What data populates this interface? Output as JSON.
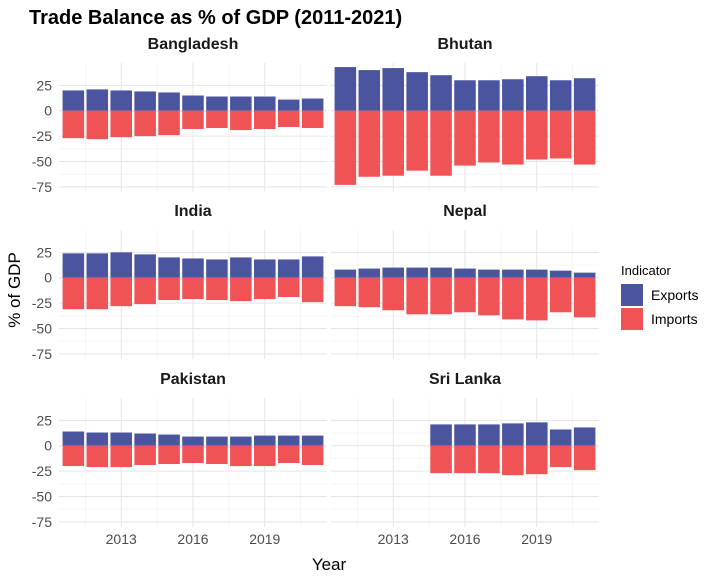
{
  "chart_data": {
    "type": "bar",
    "title": "Trade Balance as % of GDP (2011-2021)",
    "xlabel": "Year",
    "ylabel": "% of GDP",
    "x_ticks": [
      2013,
      2016,
      2019
    ],
    "y_ticks": [
      25,
      0,
      -25,
      -50,
      -75
    ],
    "ylim": [
      -80,
      47
    ],
    "xlim": [
      2010.4,
      2021.6
    ],
    "grid": true,
    "legend": {
      "title": "Indicator",
      "position": "right",
      "entries": [
        {
          "name": "Exports",
          "color": "#4a549f"
        },
        {
          "name": "Imports",
          "color": "#f05355"
        }
      ]
    },
    "years": [
      2011,
      2012,
      2013,
      2014,
      2015,
      2016,
      2017,
      2018,
      2019,
      2020,
      2021
    ],
    "panels": [
      {
        "name": "Bangladesh",
        "series": [
          {
            "name": "Exports",
            "values": [
              20,
              21,
              20,
              19,
              18,
              15,
              14,
              14,
              14,
              11,
              12
            ]
          },
          {
            "name": "Imports",
            "values": [
              -27,
              -28,
              -26,
              -25,
              -24,
              -18,
              -17,
              -19,
              -18,
              -16,
              -17
            ]
          }
        ]
      },
      {
        "name": "Bhutan",
        "series": [
          {
            "name": "Exports",
            "values": [
              43,
              40,
              42,
              38,
              35,
              30,
              30,
              31,
              34,
              30,
              32
            ]
          },
          {
            "name": "Imports",
            "values": [
              -73,
              -65,
              -64,
              -59,
              -64,
              -54,
              -51,
              -53,
              -48,
              -47,
              -53
            ]
          }
        ]
      },
      {
        "name": "India",
        "series": [
          {
            "name": "Exports",
            "values": [
              24,
              24,
              25,
              23,
              20,
              19,
              18,
              20,
              18,
              18,
              21
            ]
          },
          {
            "name": "Imports",
            "values": [
              -31,
              -31,
              -28,
              -26,
              -22,
              -21,
              -22,
              -23,
              -21,
              -19,
              -24
            ]
          }
        ]
      },
      {
        "name": "Nepal",
        "series": [
          {
            "name": "Exports",
            "values": [
              8,
              9,
              10,
              10,
              10,
              9,
              8,
              8,
              8,
              7,
              5
            ]
          },
          {
            "name": "Imports",
            "values": [
              -28,
              -29,
              -32,
              -36,
              -36,
              -34,
              -37,
              -41,
              -42,
              -34,
              -39
            ]
          }
        ]
      },
      {
        "name": "Pakistan",
        "series": [
          {
            "name": "Exports",
            "values": [
              14,
              13,
              13,
              12,
              11,
              9,
              9,
              9,
              10,
              10,
              10
            ]
          },
          {
            "name": "Imports",
            "values": [
              -20,
              -21,
              -21,
              -19,
              -18,
              -17,
              -18,
              -20,
              -20,
              -17,
              -19
            ]
          }
        ]
      },
      {
        "name": "Sri Lanka",
        "series": [
          {
            "name": "Exports",
            "values": [
              null,
              null,
              null,
              null,
              21,
              21,
              21,
              22,
              23,
              16,
              18
            ]
          },
          {
            "name": "Imports",
            "values": [
              null,
              null,
              null,
              null,
              -27,
              -27,
              -27,
              -29,
              -28,
              -21,
              -24
            ]
          }
        ]
      }
    ]
  }
}
